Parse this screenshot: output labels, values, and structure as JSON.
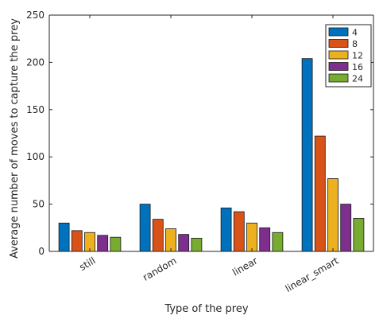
{
  "chart_data": {
    "type": "bar",
    "categories": [
      "still",
      "random",
      "linear",
      "linear_smart"
    ],
    "series": [
      {
        "name": "4",
        "color": "#0072BD",
        "values": [
          30,
          50,
          46,
          204
        ]
      },
      {
        "name": "8",
        "color": "#D95319",
        "values": [
          22,
          34,
          42,
          122
        ]
      },
      {
        "name": "12",
        "color": "#EDB120",
        "values": [
          20,
          24,
          30,
          77
        ]
      },
      {
        "name": "16",
        "color": "#7E2F8E",
        "values": [
          17,
          18,
          25,
          50
        ]
      },
      {
        "name": "24",
        "color": "#77AC30",
        "values": [
          15,
          14,
          20,
          35
        ]
      }
    ],
    "xlabel": "Type of the prey",
    "ylabel": "Average number of moves to capture the prey",
    "ylim": [
      0,
      250
    ],
    "yticks": [
      0,
      50,
      100,
      150,
      200,
      250
    ],
    "grid": false,
    "legend_position": "top-right"
  }
}
